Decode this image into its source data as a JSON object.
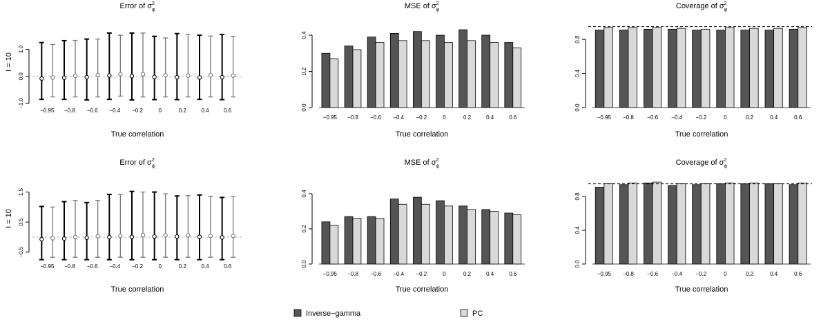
{
  "figure": {
    "row_labels": [
      "I = 10",
      "I = 10"
    ],
    "legend": [
      {
        "label": "Inverse−gamma",
        "color": "#555555"
      },
      {
        "label": "PC",
        "color": "#d9d9d9"
      }
    ]
  },
  "chart_data": [
    {
      "type": "errorbar",
      "title": "Error of σ²_φ",
      "title_base": "Error of σ",
      "title_sup": "2",
      "title_sub": "φ",
      "xlabel": "True correlation",
      "ylabel": "",
      "categories": [
        "−0.95",
        "−0.8",
        "−0.6",
        "−0.4",
        "−0.2",
        "0",
        "0.2",
        "0.4",
        "0.6"
      ],
      "ylim": [
        -1.05,
        1.65
      ],
      "yticks": [
        -1.0,
        0.0,
        1.0
      ],
      "ytick_labels": [
        "−1.0",
        "0.0",
        "1.0"
      ],
      "reference_line": 0,
      "series": [
        {
          "name": "Inverse−gamma",
          "color": "#000000",
          "point": [
            -0.08,
            -0.05,
            -0.03,
            0.03,
            0.01,
            -0.02,
            -0.03,
            -0.04,
            -0.03
          ],
          "lower": [
            -0.85,
            -0.85,
            -0.87,
            -0.85,
            -0.87,
            -0.86,
            -0.86,
            -0.85,
            -0.86
          ],
          "upper": [
            1.25,
            1.32,
            1.38,
            1.6,
            1.6,
            1.48,
            1.58,
            1.52,
            1.55
          ]
        },
        {
          "name": "PC",
          "color": "#777777",
          "point": [
            -0.04,
            0.02,
            0.05,
            0.08,
            0.08,
            0.04,
            0.03,
            0.04,
            0.03
          ],
          "lower": [
            -0.76,
            -0.76,
            -0.76,
            -0.73,
            -0.76,
            -0.76,
            -0.76,
            -0.76,
            -0.76
          ],
          "upper": [
            1.18,
            1.33,
            1.38,
            1.52,
            1.6,
            1.42,
            1.54,
            1.49,
            1.48
          ]
        }
      ]
    },
    {
      "type": "bar",
      "title": "MSE of σ²_φ",
      "title_base": "MSE of σ",
      "title_sup": "2",
      "title_sub": "φ",
      "xlabel": "True correlation",
      "ylabel": "",
      "categories": [
        "−0.95",
        "−0.8",
        "−0.6",
        "−0.4",
        "−0.2",
        "0",
        "0.2",
        "0.4",
        "0.6"
      ],
      "ylim": [
        0,
        0.48
      ],
      "yticks": [
        0.0,
        0.2,
        0.4
      ],
      "ytick_labels": [
        "0.0",
        "0.2",
        "0.4"
      ],
      "series": [
        {
          "name": "Inverse−gamma",
          "color": "#555555",
          "values": [
            0.3,
            0.34,
            0.39,
            0.41,
            0.42,
            0.4,
            0.43,
            0.4,
            0.36
          ]
        },
        {
          "name": "PC",
          "color": "#d9d9d9",
          "values": [
            0.27,
            0.32,
            0.36,
            0.37,
            0.37,
            0.36,
            0.37,
            0.36,
            0.33
          ]
        }
      ]
    },
    {
      "type": "bar",
      "title": "Coverage of σ²_φ",
      "title_base": "Coverage of σ",
      "title_sup": "2",
      "title_sub": "φ",
      "xlabel": "True correlation",
      "ylabel": "",
      "categories": [
        "−0.95",
        "−0.8",
        "−0.6",
        "−0.4",
        "−0.2",
        "0",
        "0.2",
        "0.4",
        "0.6"
      ],
      "ylim": [
        0,
        1.02
      ],
      "yticks": [
        0.0,
        0.4,
        0.8
      ],
      "ytick_labels": [
        "0.0",
        "0.4",
        "0.8"
      ],
      "reference_line": 0.95,
      "series": [
        {
          "name": "Inverse−gamma",
          "color": "#555555",
          "values": [
            0.91,
            0.91,
            0.92,
            0.92,
            0.91,
            0.91,
            0.91,
            0.91,
            0.92
          ]
        },
        {
          "name": "PC",
          "color": "#d9d9d9",
          "values": [
            0.94,
            0.94,
            0.94,
            0.93,
            0.92,
            0.94,
            0.93,
            0.93,
            0.94
          ]
        }
      ]
    },
    {
      "type": "errorbar",
      "title": "Error of σ²_ψ",
      "title_base": "Error of σ",
      "title_sup": "2",
      "title_sub": "ψ",
      "xlabel": "True correlation",
      "ylabel": "",
      "categories": [
        "−0.95",
        "−0.8",
        "−0.6",
        "−0.4",
        "−0.2",
        "0",
        "0.2",
        "0.4",
        "0.6"
      ],
      "ylim": [
        -0.78,
        1.65
      ],
      "yticks": [
        -0.5,
        0.5,
        1.5
      ],
      "ytick_labels": [
        "−0.5",
        "0.5",
        "1.5"
      ],
      "reference_line": 0,
      "series": [
        {
          "name": "Inverse−gamma",
          "color": "#000000",
          "point": [
            -0.07,
            -0.05,
            -0.02,
            0.0,
            0.01,
            0.02,
            0.02,
            0.01,
            -0.01
          ],
          "lower": [
            -0.75,
            -0.75,
            -0.75,
            -0.75,
            -0.75,
            -0.75,
            -0.75,
            -0.75,
            -0.75
          ],
          "upper": [
            1.02,
            1.18,
            1.15,
            1.42,
            1.52,
            1.5,
            1.37,
            1.4,
            1.32
          ]
        },
        {
          "name": "PC",
          "color": "#777777",
          "point": [
            -0.04,
            0.0,
            0.03,
            0.04,
            0.07,
            0.06,
            0.06,
            0.04,
            0.04
          ],
          "lower": [
            -0.67,
            -0.67,
            -0.67,
            -0.67,
            -0.67,
            -0.67,
            -0.67,
            -0.67,
            -0.67
          ],
          "upper": [
            1.0,
            1.22,
            1.22,
            1.42,
            1.5,
            1.44,
            1.38,
            1.36,
            1.35
          ]
        }
      ]
    },
    {
      "type": "bar",
      "title": "MSE of σ²_ψ",
      "title_base": "MSE of σ",
      "title_sup": "2",
      "title_sub": "ψ",
      "xlabel": "True correlation",
      "ylabel": "",
      "categories": [
        "−0.95",
        "−0.8",
        "−0.6",
        "−0.4",
        "−0.2",
        "0",
        "0.2",
        "0.4",
        "0.6"
      ],
      "ylim": [
        0,
        0.49
      ],
      "yticks": [
        0.0,
        0.2,
        0.4
      ],
      "ytick_labels": [
        "0.0",
        "0.2",
        "0.4"
      ],
      "series": [
        {
          "name": "Inverse−gamma",
          "color": "#555555",
          "values": [
            0.24,
            0.27,
            0.27,
            0.37,
            0.38,
            0.36,
            0.33,
            0.31,
            0.29
          ]
        },
        {
          "name": "PC",
          "color": "#d9d9d9",
          "values": [
            0.22,
            0.26,
            0.26,
            0.34,
            0.34,
            0.33,
            0.31,
            0.3,
            0.28
          ]
        }
      ]
    },
    {
      "type": "bar",
      "title": "Coverage of σ²_ψ",
      "title_base": "Coverage of σ",
      "title_sup": "2",
      "title_sub": "ψ",
      "xlabel": "True correlation",
      "ylabel": "",
      "categories": [
        "−0.95",
        "−0.8",
        "−0.6",
        "−0.4",
        "−0.2",
        "0",
        "0.2",
        "0.4",
        "0.6"
      ],
      "ylim": [
        0,
        1.02
      ],
      "yticks": [
        0.0,
        0.4,
        0.8
      ],
      "ytick_labels": [
        "0.0",
        "0.4",
        "0.8"
      ],
      "reference_line": 0.95,
      "series": [
        {
          "name": "Inverse−gamma",
          "color": "#555555",
          "values": [
            0.91,
            0.94,
            0.96,
            0.93,
            0.94,
            0.95,
            0.95,
            0.95,
            0.94
          ]
        },
        {
          "name": "PC",
          "color": "#d9d9d9",
          "values": [
            0.95,
            0.96,
            0.97,
            0.95,
            0.95,
            0.96,
            0.96,
            0.95,
            0.96
          ]
        }
      ]
    }
  ]
}
